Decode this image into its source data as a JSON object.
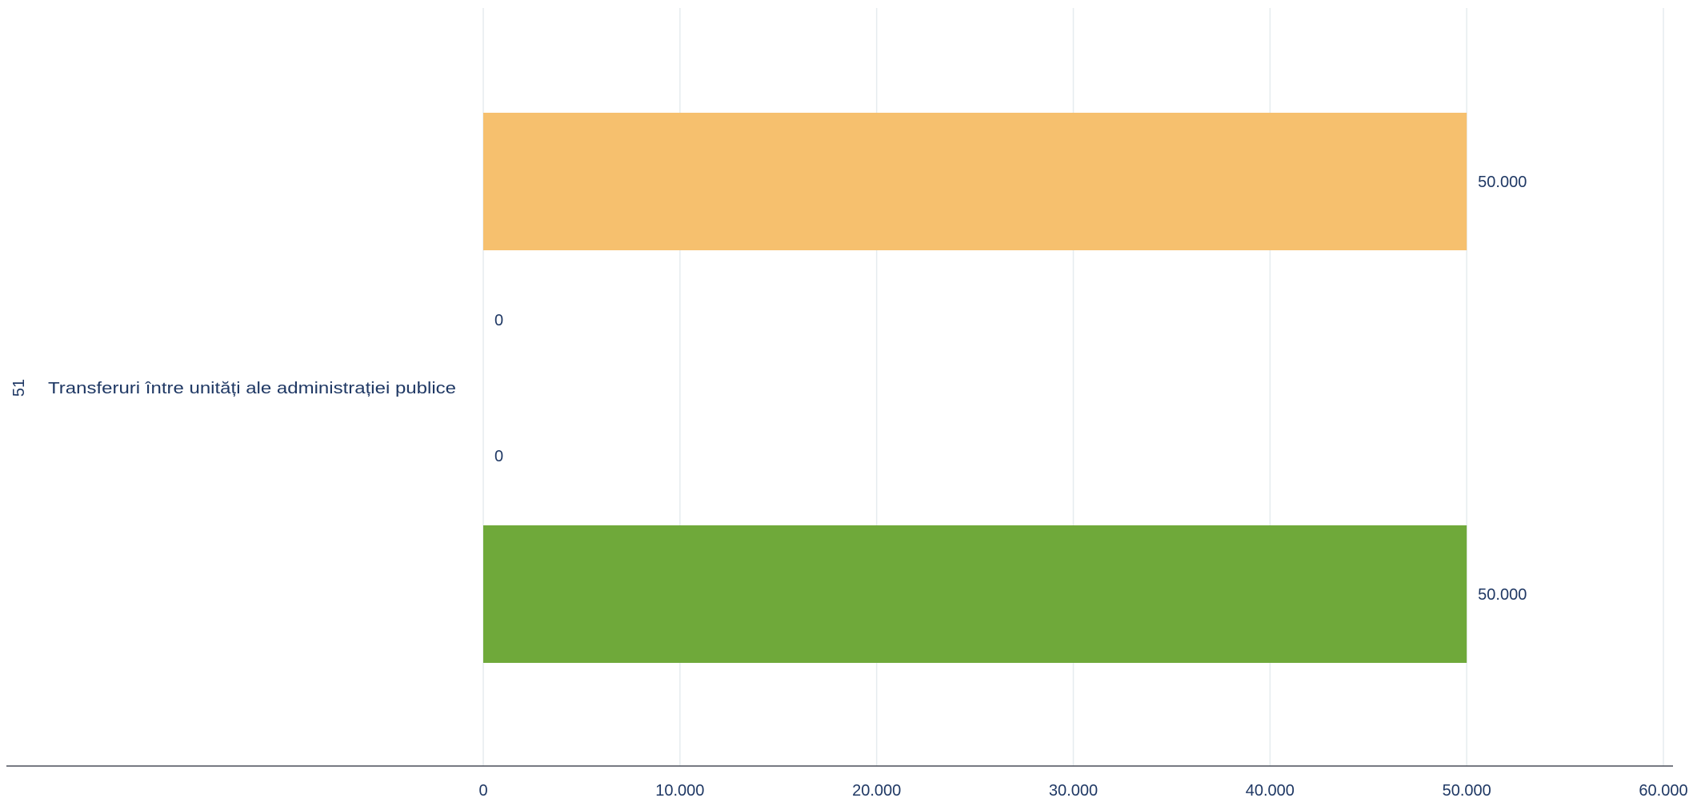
{
  "chart_data": {
    "type": "bar",
    "orientation": "horizontal",
    "group_code": "51",
    "categories": [
      "Transferuri între unități ale administrației publice"
    ],
    "series": [
      {
        "values": [
          50000
        ],
        "value_label": "50.000",
        "color": "#f6c06e"
      },
      {
        "values": [
          0
        ],
        "value_label": "0",
        "color": "#5b9bd5"
      },
      {
        "values": [
          0
        ],
        "value_label": "0",
        "color": "#a5a5a5"
      },
      {
        "values": [
          50000
        ],
        "value_label": "50.000",
        "color": "#6fa93a"
      }
    ],
    "xlim": [
      0,
      60000
    ],
    "xticks": [
      0,
      10000,
      20000,
      30000,
      40000,
      50000,
      60000
    ],
    "xtick_labels": [
      "0",
      "10.000",
      "20.000",
      "30.000",
      "40.000",
      "50.000",
      "60.000"
    ],
    "grid": true,
    "legend": "none",
    "title": "",
    "xlabel": "",
    "ylabel": ""
  },
  "colors": {
    "text": "#1f3864",
    "grid": "#e6ecef",
    "axis": "#4a4f5a"
  }
}
